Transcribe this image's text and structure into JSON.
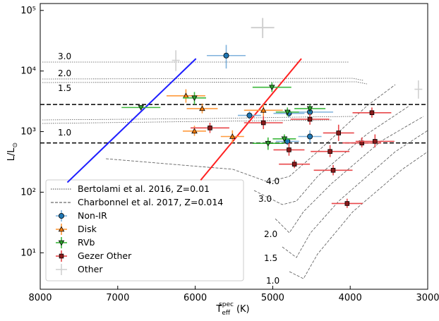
{
  "chart_data": {
    "type": "scatter",
    "x_label": {
      "text": "T",
      "sub": "eff",
      "sup": "spec",
      "unit": "(K)"
    },
    "y_label": {
      "text": "L/L",
      "sub": "⊙"
    },
    "xlim": [
      8000,
      3000
    ],
    "xticks": [
      8000,
      7000,
      6000,
      5000,
      4000,
      3000
    ],
    "ylim": [
      2.5,
      130000
    ],
    "log_y": true,
    "yticks": [
      {
        "value": 10,
        "label": "10¹"
      },
      {
        "value": 100,
        "label": "10²"
      },
      {
        "value": 1000,
        "label": "10³"
      },
      {
        "value": 10000,
        "label": "10⁴"
      },
      {
        "value": 100000,
        "label": "10⁵"
      }
    ],
    "legend_loc": "lower left",
    "tracks": [
      {
        "name": "Bertolami et al. 2016, Z=0.01",
        "style": "dotted"
      },
      {
        "name": "Charbonnel et al. 2017, Z=0.014",
        "style": "dashed"
      }
    ],
    "series": [
      {
        "name": "Non-IR",
        "marker": "circle",
        "color": "#1f77b4",
        "ecolor": "#7fb2dc",
        "x": [
          5600,
          5300,
          4790,
          4520,
          4520,
          4810
        ],
        "values": [
          18000,
          1850,
          2000,
          2100,
          830,
          690
        ],
        "xerr": [
          250,
          150,
          200,
          300,
          150,
          150
        ],
        "ylow": [
          11000,
          1600,
          1700,
          1800,
          650,
          600
        ],
        "yhigh": [
          27000,
          2150,
          2300,
          2400,
          1050,
          800
        ]
      },
      {
        "name": "Disk",
        "marker": "triangle-up",
        "color": "#ff7f0e",
        "ecolor": "#ff9a3c",
        "x": [
          6120,
          5910,
          6010,
          5520,
          5120
        ],
        "values": [
          3900,
          2400,
          1020,
          830,
          2250
        ],
        "xerr": [
          250,
          200,
          150,
          150,
          250
        ],
        "ylow": [
          3000,
          2000,
          850,
          650,
          1800
        ],
        "yhigh": [
          5000,
          2900,
          1250,
          1050,
          2800
        ]
      },
      {
        "name": "RVb",
        "marker": "triangle-down",
        "color": "#2ca02c",
        "ecolor": "#3cb83c",
        "x": [
          6700,
          6010,
          5010,
          5060,
          4850,
          4810,
          4520
        ],
        "values": [
          2500,
          3600,
          5400,
          640,
          760,
          2100,
          2400
        ],
        "xerr": [
          250,
          150,
          250,
          200,
          150,
          150,
          200
        ],
        "ylow": [
          2300,
          2800,
          4500,
          500,
          650,
          1800,
          2100
        ],
        "yhigh": [
          2700,
          4500,
          6500,
          800,
          900,
          2500,
          2800
        ]
      },
      {
        "name": "Gezer Other",
        "marker": "square",
        "color": "#8b1a1a",
        "ecolor": "#e8474a",
        "x": [
          5810,
          5120,
          4520,
          4790,
          4720,
          4260,
          4150,
          4220,
          3720,
          3850,
          3680,
          4040
        ],
        "values": [
          1150,
          1400,
          1600,
          500,
          290,
          470,
          950,
          230,
          2050,
          650,
          690,
          65
        ],
        "xerr": [
          250,
          250,
          250,
          200,
          200,
          250,
          200,
          250,
          250,
          250,
          250,
          200
        ],
        "ylow": [
          950,
          1100,
          1300,
          400,
          250,
          380,
          700,
          190,
          1700,
          550,
          550,
          55
        ],
        "yhigh": [
          1400,
          1800,
          1950,
          650,
          340,
          600,
          1300,
          280,
          2500,
          800,
          900,
          78
        ]
      },
      {
        "name": "Other",
        "marker": "plus",
        "color": "#cccccc",
        "ecolor": "#d0d0d0",
        "x": [
          5130,
          6250,
          3120
        ],
        "values": [
          52000,
          15000,
          5000
        ],
        "xerr": [
          150,
          50,
          50
        ],
        "ylow": [
          35000,
          10000,
          3500
        ],
        "yhigh": [
          75000,
          22000,
          7000
        ]
      }
    ],
    "lines": [
      {
        "color": "#1f1fff",
        "x": [
          7650,
          5990
        ],
        "values": [
          145,
          16000
        ]
      },
      {
        "color": "#ff2020",
        "x": [
          5930,
          4630
        ],
        "values": [
          158,
          16000
        ]
      }
    ],
    "hlines": [
      2800,
      650
    ],
    "annotations": [
      "3.0",
      "2.0",
      "1.5",
      "1.0",
      "4.0",
      "3.0",
      "2.0",
      "1.5",
      "1.0"
    ]
  }
}
